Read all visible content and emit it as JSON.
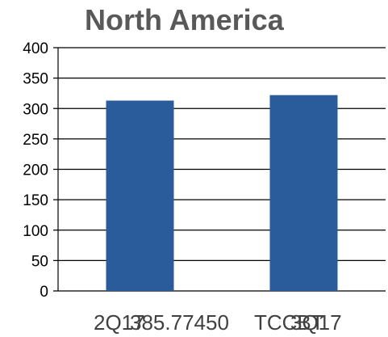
{
  "chart_data": {
    "type": "bar",
    "title": "North America",
    "categories": [
      "2Q17",
      "3Q17"
    ],
    "values": [
      313,
      322
    ],
    "ylim": [
      0,
      400
    ],
    "yticks": [
      0,
      50,
      100,
      150,
      200,
      250,
      300,
      350,
      400
    ],
    "grid": true,
    "legend": "none",
    "colors": {
      "bar": "#2a5b9a",
      "grid": "#000000",
      "title": "#595959",
      "ticks": "#000000"
    },
    "overlay_text": [
      "385.77450",
      "TCCBT"
    ]
  }
}
